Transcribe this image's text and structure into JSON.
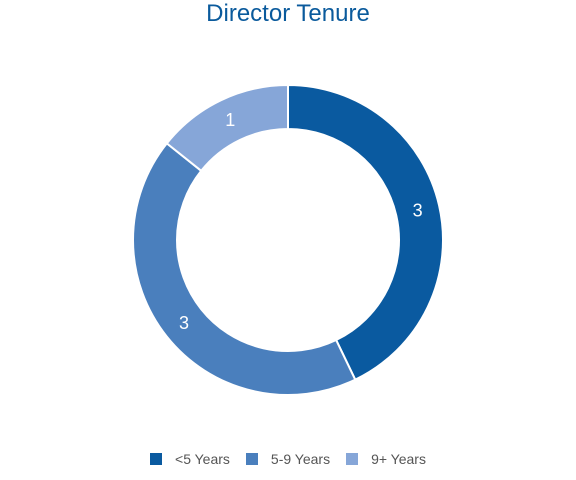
{
  "chart_data": {
    "type": "pie",
    "title": "Director Tenure",
    "categories": [
      "<5 Years",
      "5-9 Years",
      "9+ Years"
    ],
    "values": [
      3,
      3,
      1
    ],
    "colors": [
      "#0a5aa0",
      "#4a7fbd",
      "#86a6d8"
    ],
    "legend_position": "bottom"
  }
}
